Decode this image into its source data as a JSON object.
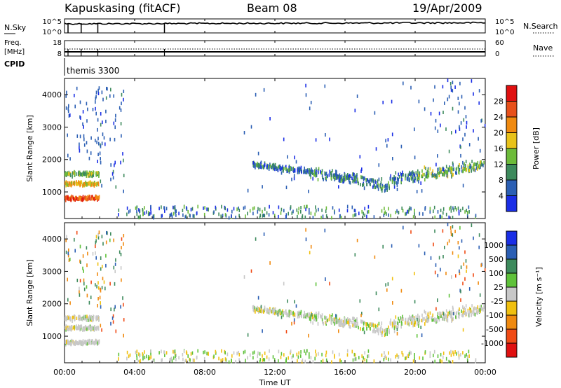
{
  "header": {
    "title": "Kapuskasing (fitACF)",
    "beam": "Beam 08",
    "date": "19/Apr/2009"
  },
  "strip_nsky": {
    "left_label": "N.Sky",
    "left_ticks": [
      "10^5",
      "10^0"
    ],
    "right_label": "N.Search",
    "right_ticks": [
      "10^5",
      "10^0"
    ]
  },
  "strip_freq": {
    "left_label_line1": "Freq.",
    "left_label_line2": "[MHz]",
    "left_ticks": [
      "18",
      "8"
    ],
    "right_label": "Nave",
    "right_ticks": [
      "60",
      "0"
    ]
  },
  "cpid": {
    "label": "CPID",
    "program": "themis 3300"
  },
  "colors": {
    "power": [
      "#1a2ee6",
      "#2b5fb4",
      "#3d8a5c",
      "#6dbb3a",
      "#e8c21a",
      "#f08a10",
      "#e8501a",
      "#e01010"
    ],
    "velocity": [
      "#e01010",
      "#f04a14",
      "#f08a10",
      "#f0c010",
      "#c8c8c8",
      "#5fc23a",
      "#3d8a5c",
      "#2b5fb4",
      "#1a2ee6"
    ]
  },
  "chart_data": [
    {
      "type": "heatmap",
      "panel": "power",
      "ylabel": "Slant Range [km]",
      "yticks": [
        "1000",
        "2000",
        "3000",
        "4000"
      ],
      "ylim": [
        180,
        4500
      ],
      "xlim": [
        0,
        24
      ],
      "colorbar_label": "Power [dB]",
      "colorbar_ticks": [
        "4",
        "8",
        "12",
        "16",
        "20",
        "24",
        "28"
      ],
      "colorbar_range": [
        0,
        32
      ]
    },
    {
      "type": "heatmap",
      "panel": "velocity",
      "ylabel": "Slant Range [km]",
      "yticks": [
        "1000",
        "2000",
        "3000",
        "4000"
      ],
      "ylim": [
        180,
        4500
      ],
      "xlim": [
        0,
        24
      ],
      "colorbar_label": "Velocity [m s⁻¹]",
      "colorbar_ticks": [
        "1000",
        "500",
        "100",
        "25",
        "-25",
        "-100",
        "-500",
        "-1000"
      ]
    }
  ],
  "xaxis": {
    "label": "Time UT",
    "ticks": [
      "00:00",
      "04:00",
      "08:00",
      "12:00",
      "16:00",
      "20:00",
      "00:00"
    ]
  }
}
